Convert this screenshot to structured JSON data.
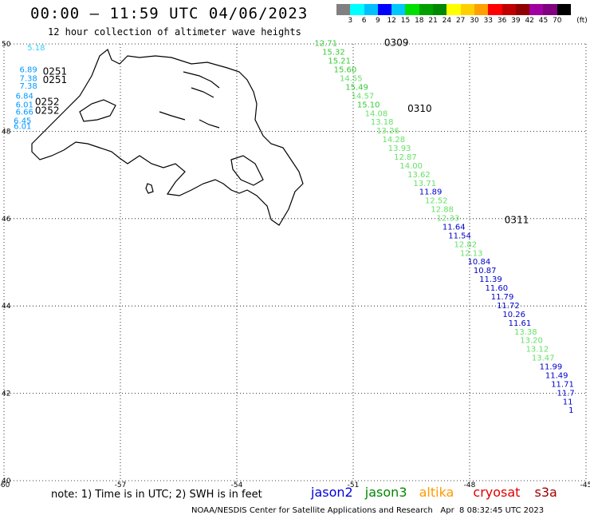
{
  "header": {
    "title": "00:00 – 11:59 UTC 04/06/2023",
    "subtitle": "12 hour collection of altimeter wave heights"
  },
  "legend": {
    "unit": "(ft)",
    "colors": [
      "#808080",
      "#00ffff",
      "#00bfff",
      "#0000ff",
      "#00c8ff",
      "#00e000",
      "#00a000",
      "#008800",
      "#ffff00",
      "#ffd000",
      "#ffa000",
      "#ff0000",
      "#c00000",
      "#900000",
      "#a000a0",
      "#800080",
      "#000000"
    ],
    "labels": [
      "3",
      "6",
      "9",
      "12",
      "15",
      "18",
      "21",
      "24",
      "27",
      "30",
      "33",
      "36",
      "39",
      "42",
      "45",
      "70"
    ]
  },
  "map": {
    "lon_ticks": [
      "-60",
      "-57",
      "-54",
      "-51",
      "-48",
      "-45"
    ],
    "lat_ticks": [
      "50",
      "48",
      "46",
      "44",
      "42",
      "40"
    ],
    "lon_range": [
      -60,
      -45
    ],
    "lat_range": [
      40,
      50
    ],
    "grid": true
  },
  "track_labels": [
    {
      "text": "0309",
      "lon": -50.2,
      "lat": 49.95,
      "color": "#007000"
    },
    {
      "text": "0310",
      "lon": -49.6,
      "lat": 48.45,
      "color": "#007000"
    },
    {
      "text": "0311",
      "lon": -47.1,
      "lat": 45.9,
      "color": "#007000"
    },
    {
      "text": "0251",
      "lon": -59.0,
      "lat": 49.3,
      "color": "#ff0000"
    },
    {
      "text": "0251",
      "lon": -59.0,
      "lat": 49.1,
      "color": "#ff0000"
    },
    {
      "text": "0252",
      "lon": -59.2,
      "lat": 48.6,
      "color": "#ff0000"
    },
    {
      "text": "0252",
      "lon": -59.2,
      "lat": 48.4,
      "color": "#ff0000"
    }
  ],
  "observations": [
    {
      "v": "12.71",
      "lon": -52.0,
      "lat": 49.95,
      "c": "#33cc33"
    },
    {
      "v": "15.32",
      "lon": -51.8,
      "lat": 49.75,
      "c": "#33cc33"
    },
    {
      "v": "15.21",
      "lon": -51.65,
      "lat": 49.55,
      "c": "#33cc33"
    },
    {
      "v": "15.60",
      "lon": -51.5,
      "lat": 49.35,
      "c": "#33cc33"
    },
    {
      "v": "14.55",
      "lon": -51.35,
      "lat": 49.15,
      "c": "#66e066"
    },
    {
      "v": "15.49",
      "lon": -51.2,
      "lat": 48.95,
      "c": "#33cc33"
    },
    {
      "v": "14.57",
      "lon": -51.05,
      "lat": 48.75,
      "c": "#66e066"
    },
    {
      "v": "15.10",
      "lon": -50.9,
      "lat": 48.55,
      "c": "#33cc33"
    },
    {
      "v": "14.08",
      "lon": -50.7,
      "lat": 48.35,
      "c": "#66e066"
    },
    {
      "v": "13.18",
      "lon": -50.55,
      "lat": 48.15,
      "c": "#66e066"
    },
    {
      "v": "13.26",
      "lon": -50.4,
      "lat": 47.95,
      "c": "#66e066"
    },
    {
      "v": "14.28",
      "lon": -50.25,
      "lat": 47.75,
      "c": "#66e066"
    },
    {
      "v": "13.93",
      "lon": -50.1,
      "lat": 47.55,
      "c": "#66e066"
    },
    {
      "v": "12.87",
      "lon": -49.95,
      "lat": 47.35,
      "c": "#66e066"
    },
    {
      "v": "14.00",
      "lon": -49.8,
      "lat": 47.15,
      "c": "#66e066"
    },
    {
      "v": "13.62",
      "lon": -49.6,
      "lat": 46.95,
      "c": "#66e066"
    },
    {
      "v": "13.71",
      "lon": -49.45,
      "lat": 46.75,
      "c": "#66e066"
    },
    {
      "v": "11.89",
      "lon": -49.3,
      "lat": 46.55,
      "c": "#0000cc"
    },
    {
      "v": "12.52",
      "lon": -49.15,
      "lat": 46.35,
      "c": "#66e066"
    },
    {
      "v": "12.88",
      "lon": -49.0,
      "lat": 46.15,
      "c": "#66e066"
    },
    {
      "v": "12.33",
      "lon": -48.85,
      "lat": 45.95,
      "c": "#66e066"
    },
    {
      "v": "11.64",
      "lon": -48.7,
      "lat": 45.75,
      "c": "#0000cc"
    },
    {
      "v": "11.54",
      "lon": -48.55,
      "lat": 45.55,
      "c": "#0000cc"
    },
    {
      "v": "12.82",
      "lon": -48.4,
      "lat": 45.35,
      "c": "#66e066"
    },
    {
      "v": "12.13",
      "lon": -48.25,
      "lat": 45.15,
      "c": "#66e066"
    },
    {
      "v": "10.84",
      "lon": -48.05,
      "lat": 44.95,
      "c": "#0000cc"
    },
    {
      "v": "10.87",
      "lon": -47.9,
      "lat": 44.75,
      "c": "#0000cc"
    },
    {
      "v": "11.39",
      "lon": -47.75,
      "lat": 44.55,
      "c": "#0000cc"
    },
    {
      "v": "11.60",
      "lon": -47.6,
      "lat": 44.35,
      "c": "#0000cc"
    },
    {
      "v": "11.79",
      "lon": -47.45,
      "lat": 44.15,
      "c": "#0000cc"
    },
    {
      "v": "11.72",
      "lon": -47.3,
      "lat": 43.95,
      "c": "#0000cc"
    },
    {
      "v": "10.26",
      "lon": -47.15,
      "lat": 43.75,
      "c": "#0000cc"
    },
    {
      "v": "11.61",
      "lon": -47.0,
      "lat": 43.55,
      "c": "#0000cc"
    },
    {
      "v": "13.38",
      "lon": -46.85,
      "lat": 43.35,
      "c": "#66e066"
    },
    {
      "v": "13.20",
      "lon": -46.7,
      "lat": 43.15,
      "c": "#66e066"
    },
    {
      "v": "13.12",
      "lon": -46.55,
      "lat": 42.95,
      "c": "#66e066"
    },
    {
      "v": "13.47",
      "lon": -46.4,
      "lat": 42.75,
      "c": "#66e066"
    },
    {
      "v": "11.99",
      "lon": -46.2,
      "lat": 42.55,
      "c": "#0000cc"
    },
    {
      "v": "11.49",
      "lon": -46.05,
      "lat": 42.35,
      "c": "#0000cc"
    },
    {
      "v": "11.71",
      "lon": -45.9,
      "lat": 42.15,
      "c": "#0000cc"
    },
    {
      "v": "11.7",
      "lon": -45.75,
      "lat": 41.95,
      "c": "#0000cc"
    },
    {
      "v": "11",
      "lon": -45.6,
      "lat": 41.75,
      "c": "#0000cc"
    },
    {
      "v": "1",
      "lon": -45.45,
      "lat": 41.55,
      "c": "#0000cc"
    },
    {
      "v": "5.18",
      "lon": -59.4,
      "lat": 49.85,
      "c": "#33ccff"
    },
    {
      "v": "6.89",
      "lon": -59.6,
      "lat": 49.35,
      "c": "#0099ff"
    },
    {
      "v": "7.38",
      "lon": -59.6,
      "lat": 49.15,
      "c": "#0099ff"
    },
    {
      "v": "7.38",
      "lon": -59.6,
      "lat": 48.98,
      "c": "#0099ff"
    },
    {
      "v": "6.84",
      "lon": -59.7,
      "lat": 48.75,
      "c": "#0099ff"
    },
    {
      "v": "6.01",
      "lon": -59.7,
      "lat": 48.55,
      "c": "#0099ff"
    },
    {
      "v": "6.66",
      "lon": -59.7,
      "lat": 48.38,
      "c": "#0099ff"
    },
    {
      "v": "6.45",
      "lon": -59.75,
      "lat": 48.18,
      "c": "#0099ff"
    },
    {
      "v": "6.01",
      "lon": -59.75,
      "lat": 48.05,
      "c": "#0099ff"
    }
  ],
  "footer": {
    "note": "note: 1) Time is in UTC; 2) SWH is in feet",
    "satellites": [
      {
        "name": "jason2",
        "color": "#0000dd"
      },
      {
        "name": "jason3",
        "color": "#008800"
      },
      {
        "name": "altika",
        "color": "#ff9900"
      },
      {
        "name": "cryosat",
        "color": "#dd0000"
      },
      {
        "name": "s3a",
        "color": "#a00000"
      }
    ],
    "credit": "NOAA/NESDIS Center for Satellite Applications and Research   Apr  8 08:32:45 UTC 2023"
  }
}
